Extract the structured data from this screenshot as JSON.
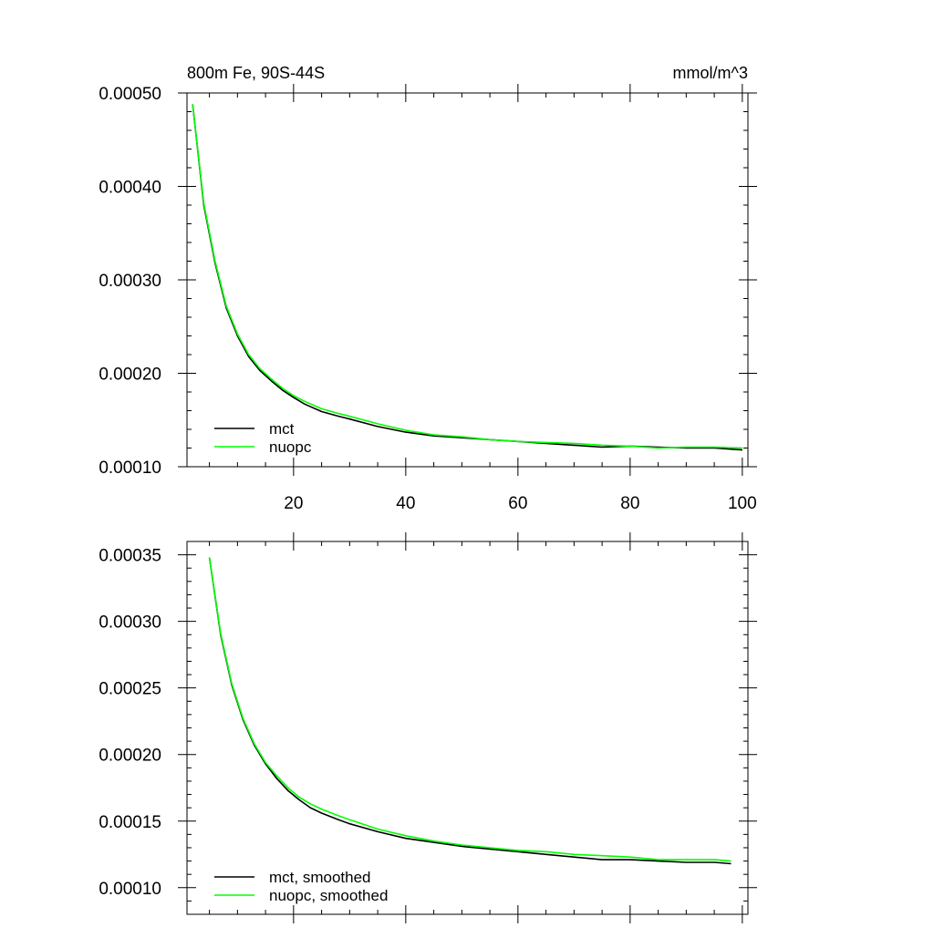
{
  "chart_data": [
    {
      "type": "line",
      "title": "800m Fe, 90S-44S",
      "units": "mmol/m^3",
      "xlabel": "",
      "ylabel": "",
      "xlim": [
        1,
        101
      ],
      "ylim": [
        0.0001,
        0.0005
      ],
      "xticks": [
        20,
        40,
        60,
        80,
        100
      ],
      "xtick_labels": [
        "20",
        "40",
        "60",
        "80",
        "100"
      ],
      "yticks": [
        0.0001,
        0.0002,
        0.0003,
        0.0004,
        0.0005
      ],
      "ytick_labels": [
        "0.00010",
        "0.00020",
        "0.00030",
        "0.00040",
        "0.00050"
      ],
      "legend_position": "bottom-left",
      "grid": false,
      "series": [
        {
          "name": "mct",
          "color": "#000000",
          "x": [
            2,
            4,
            6,
            8,
            10,
            12,
            14,
            16,
            18,
            20,
            22,
            25,
            28,
            30,
            35,
            40,
            45,
            50,
            55,
            60,
            65,
            70,
            75,
            80,
            85,
            90,
            95,
            100
          ],
          "y": [
            0.000488,
            0.00038,
            0.000318,
            0.00027,
            0.00024,
            0.000218,
            0.000203,
            0.000192,
            0.000182,
            0.000174,
            0.000167,
            0.000159,
            0.000154,
            0.000151,
            0.000143,
            0.000137,
            0.000133,
            0.000131,
            0.000129,
            0.000127,
            0.000125,
            0.000123,
            0.000121,
            0.000122,
            0.000121,
            0.00012,
            0.00012,
            0.000118
          ]
        },
        {
          "name": "nuopc",
          "color": "#00ff00",
          "x": [
            2,
            4,
            6,
            8,
            10,
            12,
            14,
            16,
            18,
            20,
            22,
            25,
            28,
            30,
            35,
            40,
            45,
            50,
            55,
            60,
            65,
            70,
            75,
            80,
            85,
            90,
            95,
            100
          ],
          "y": [
            0.000488,
            0.000382,
            0.00032,
            0.000272,
            0.000242,
            0.00022,
            0.000205,
            0.000194,
            0.000184,
            0.000176,
            0.00017,
            0.000162,
            0.000157,
            0.000154,
            0.000146,
            0.000139,
            0.000134,
            0.000132,
            0.000129,
            0.000127,
            0.000126,
            0.000125,
            0.000123,
            0.000122,
            0.00012,
            0.000121,
            0.000121,
            0.00012
          ]
        }
      ]
    },
    {
      "type": "line",
      "title": "",
      "xlabel": "",
      "ylabel": "",
      "xlim": [
        1,
        101
      ],
      "ylim": [
        8e-05,
        0.00036
      ],
      "xticks": [
        20,
        40,
        60,
        80,
        100
      ],
      "xtick_labels": [],
      "yticks": [
        0.0001,
        0.00015,
        0.0002,
        0.00025,
        0.0003,
        0.00035
      ],
      "ytick_labels": [
        "0.00010",
        "0.00015",
        "0.00020",
        "0.00025",
        "0.00030",
        "0.00035"
      ],
      "legend_position": "bottom-left",
      "grid": false,
      "series": [
        {
          "name": "mct, smoothed",
          "color": "#000000",
          "x": [
            5,
            7,
            9,
            11,
            13,
            15,
            17,
            19,
            21,
            23,
            25,
            28,
            30,
            35,
            40,
            45,
            50,
            55,
            60,
            65,
            70,
            75,
            80,
            85,
            90,
            95,
            98
          ],
          "y": [
            0.000348,
            0.00029,
            0.000252,
            0.000226,
            0.000207,
            0.000193,
            0.000182,
            0.000173,
            0.000166,
            0.00016,
            0.000156,
            0.000151,
            0.000148,
            0.000142,
            0.000137,
            0.000134,
            0.000131,
            0.000129,
            0.000127,
            0.000125,
            0.000123,
            0.000121,
            0.000121,
            0.00012,
            0.000119,
            0.000119,
            0.000118
          ]
        },
        {
          "name": "nuopc, smoothed",
          "color": "#00ff00",
          "x": [
            5,
            7,
            9,
            11,
            13,
            15,
            17,
            19,
            21,
            23,
            25,
            28,
            30,
            35,
            40,
            45,
            50,
            55,
            60,
            65,
            70,
            75,
            80,
            85,
            90,
            95,
            98
          ],
          "y": [
            0.000348,
            0.000291,
            0.000253,
            0.000227,
            0.000208,
            0.000194,
            0.000184,
            0.000175,
            0.000168,
            0.000163,
            0.000159,
            0.000154,
            0.000151,
            0.000144,
            0.000139,
            0.000135,
            0.000132,
            0.00013,
            0.000128,
            0.000127,
            0.000125,
            0.000124,
            0.000123,
            0.000121,
            0.000121,
            0.000121,
            0.00012
          ]
        }
      ]
    }
  ]
}
